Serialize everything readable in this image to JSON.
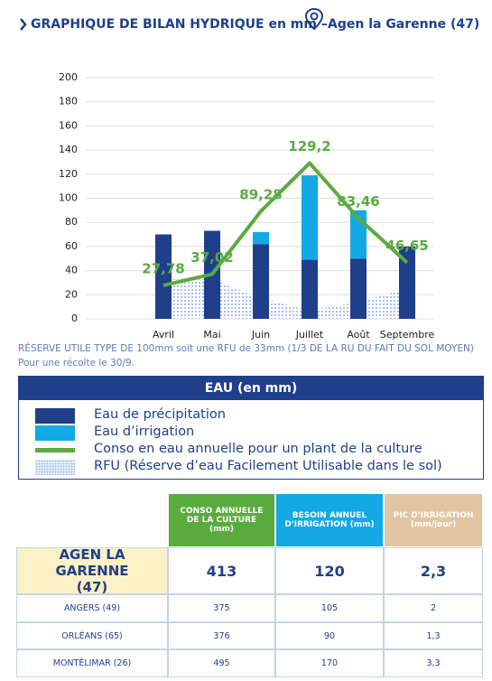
{
  "header": {
    "title": "GRAPHIQUE DE BILAN HYDRIQUE en mm –",
    "location": "Agen la Garenne (47)"
  },
  "chart_data": {
    "type": "bar",
    "stacked": true,
    "grid": true,
    "categories": [
      "Avril",
      "Mai",
      "Juin",
      "Juillet",
      "Août",
      "Septembre"
    ],
    "ylim": [
      0,
      200
    ],
    "yticks": [
      0,
      20,
      40,
      60,
      80,
      100,
      120,
      140,
      160,
      180,
      200
    ],
    "series": [
      {
        "name": "Eau de précipitation",
        "type": "bar",
        "color": "#1f3f8a",
        "values": [
          70,
          73,
          62,
          49,
          50,
          60
        ]
      },
      {
        "name": "Eau d’irrigation",
        "type": "bar",
        "color": "#12a9e6",
        "values": [
          0,
          0,
          10,
          70,
          40,
          0
        ]
      },
      {
        "name": "Conso en eau annuelle pour un plant de la culture",
        "type": "line",
        "color": "#5aab3e",
        "values": [
          27.78,
          37.02,
          89.28,
          129.2,
          83.46,
          46.65
        ],
        "value_labels": [
          "27,78",
          "37,02",
          "89,28",
          "129,2",
          "83,46",
          "46,65"
        ]
      },
      {
        "name": "RFU (Réserve d’eau Facilement Utilisable dans le sol)",
        "type": "area",
        "color": "#a8c2ee",
        "values": [
          33,
          33,
          17,
          7,
          14,
          25
        ]
      }
    ]
  },
  "note": [
    "RÉSERVE UTILE TYPE DE 100mm soit une RFU de 33mm (1/3 DE LA RU DU FAIT DU SOL MOYEN)",
    "Pour une récolte le 30/9."
  ],
  "legend_title": "EAU (en mm)",
  "table": {
    "columns": [
      "CONSO ANNUELLE DE LA CULTURE (mm)",
      "BESOIN ANNUEL D'IRRIGATION (mm)",
      "PIC D'IRRIGATION (mm/jour)"
    ],
    "rows": [
      [
        "AGEN LA GARENNE (47)",
        "413",
        "120",
        "2,3"
      ],
      [
        "ANGERS (49)",
        "375",
        "105",
        "2"
      ],
      [
        "ORLÉANS (65)",
        "376",
        "90",
        "1,3"
      ],
      [
        "MONTÉLIMAR (26)",
        "495",
        "170",
        "3,3"
      ]
    ]
  }
}
